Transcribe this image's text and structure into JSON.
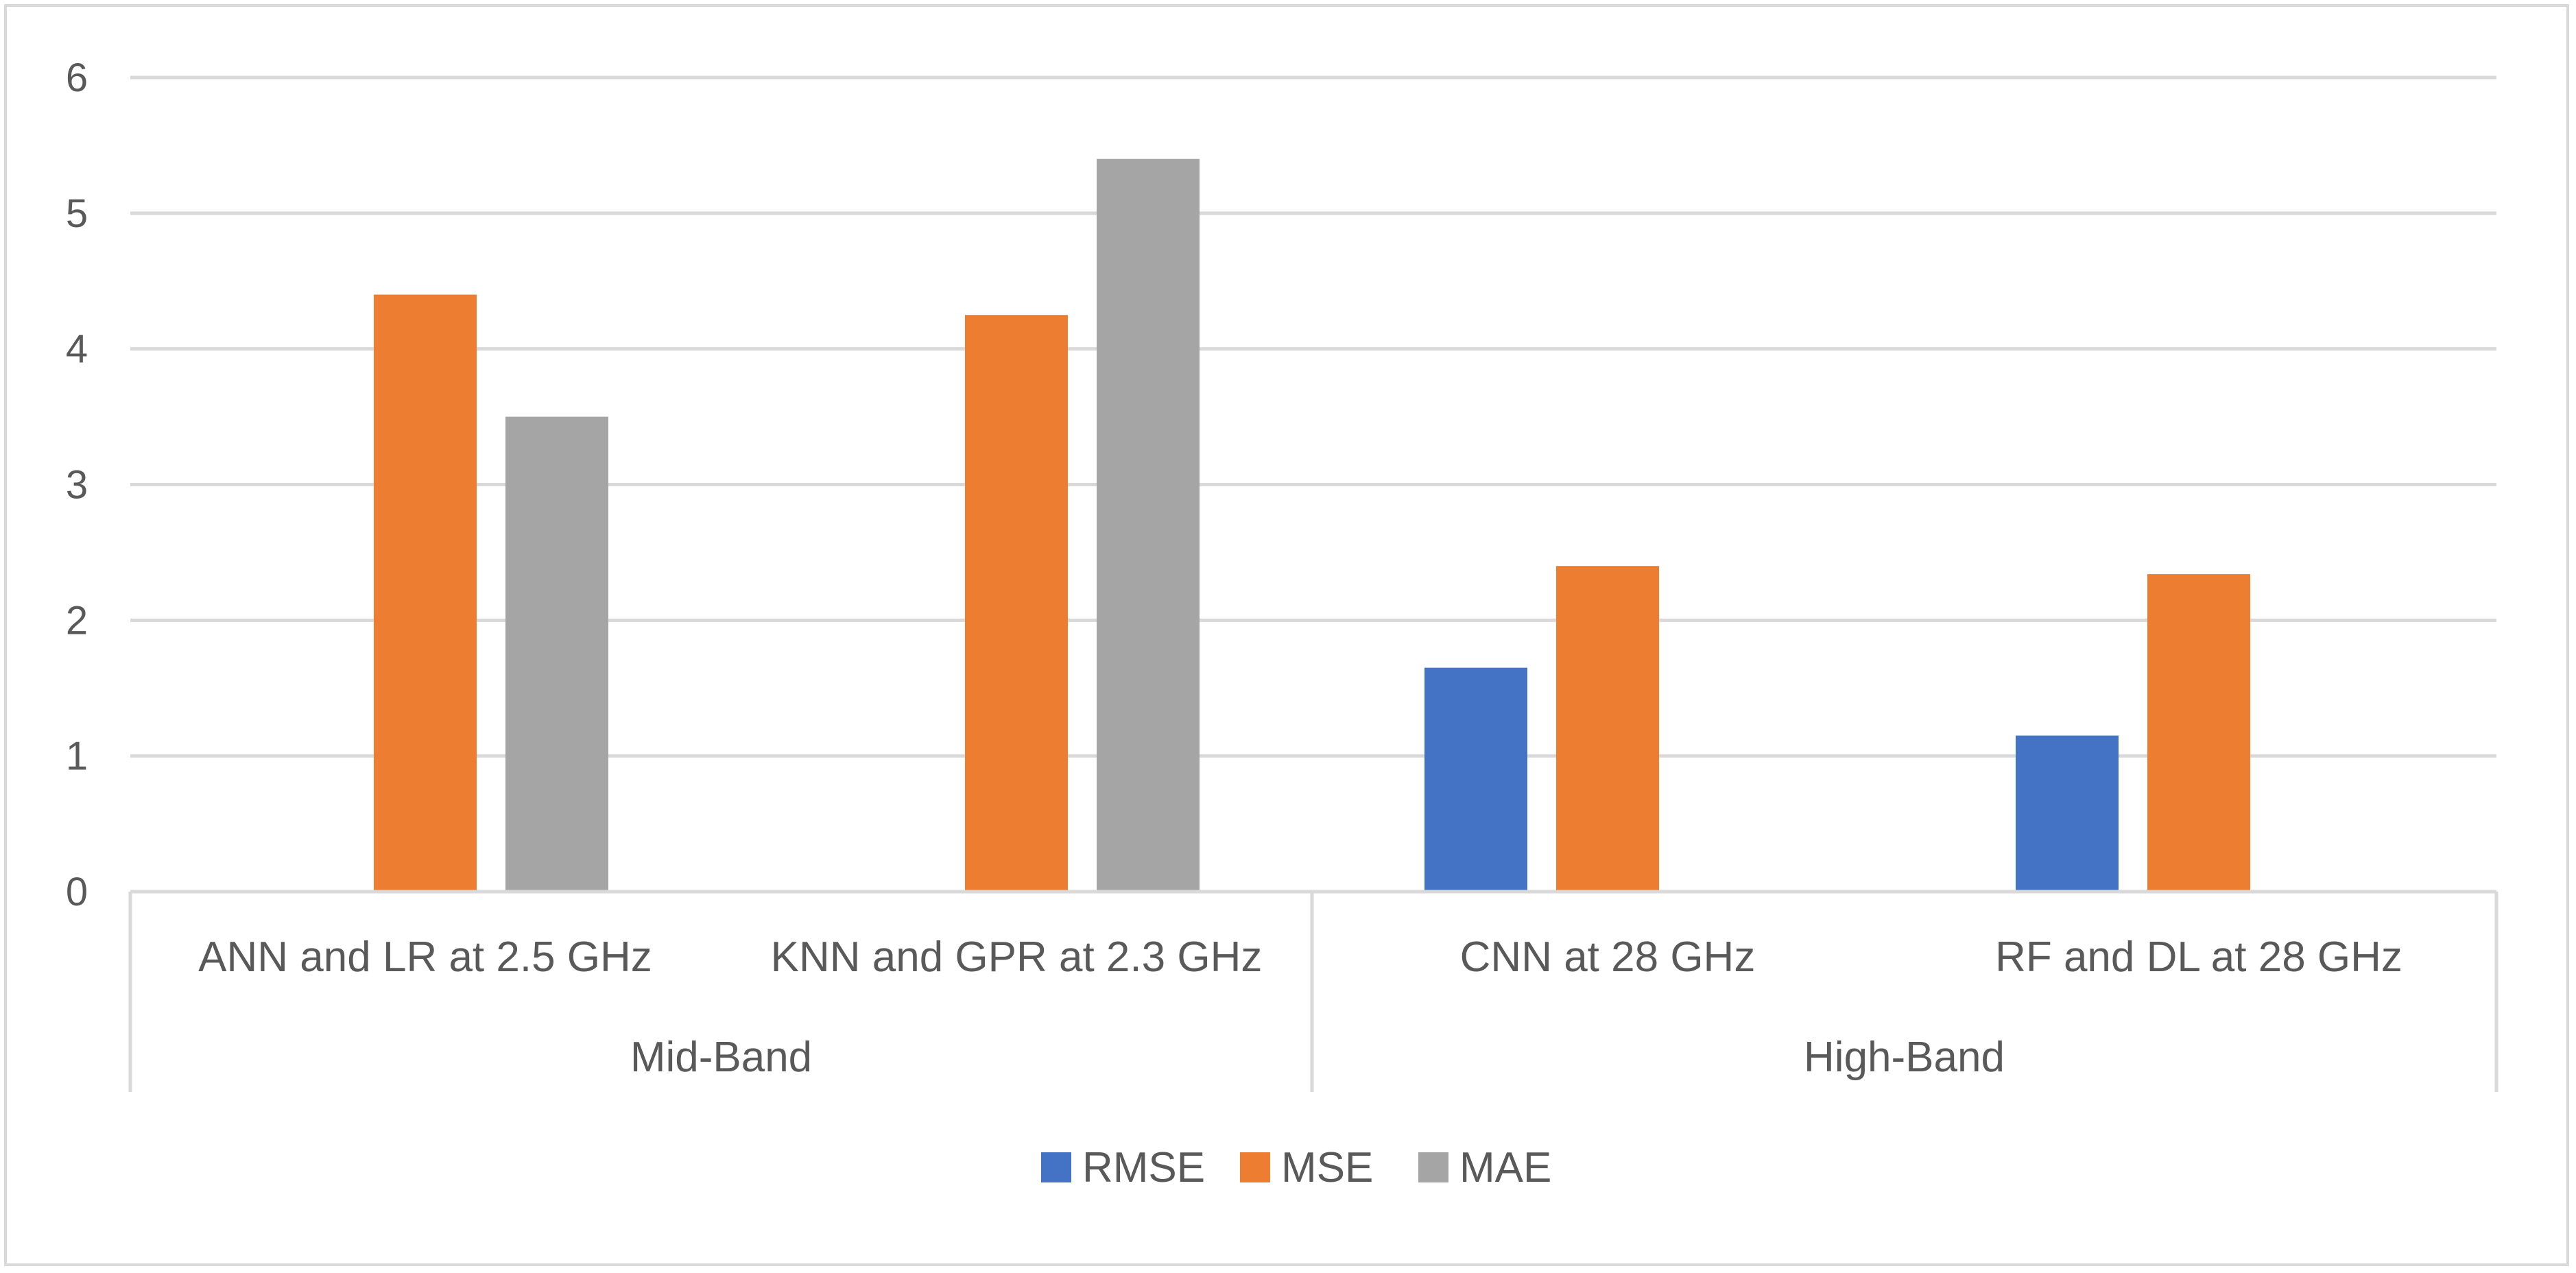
{
  "chart_data": {
    "type": "bar",
    "title": "",
    "xlabel": "",
    "ylabel": "",
    "ylim": [
      0,
      6
    ],
    "yticks": [
      0,
      1,
      2,
      3,
      4,
      5,
      6
    ],
    "ytick_labels": [
      "0",
      "1",
      "2",
      "3",
      "4",
      "5",
      "6"
    ],
    "grid": true,
    "legend_position": "bottom-center",
    "categories": [
      "ANN and LR at 2.5 GHz",
      "KNN and GPR at 2.3 GHz",
      "CNN at 28 GHz",
      "RF and DL at 28 GHz"
    ],
    "groups": [
      {
        "label": "Mid-Band",
        "categories": [
          "ANN and LR at 2.5 GHz",
          "KNN and GPR at 2.3 GHz"
        ]
      },
      {
        "label": "High-Band",
        "categories": [
          "CNN at 28 GHz",
          "RF and DL at 28 GHz"
        ]
      }
    ],
    "series": [
      {
        "name": "RMSE",
        "color": "#4472c4",
        "values": [
          null,
          null,
          1.65,
          1.15
        ]
      },
      {
        "name": "MSE",
        "color": "#ed7d31",
        "values": [
          4.4,
          4.25,
          2.4,
          2.34
        ]
      },
      {
        "name": "MAE",
        "color": "#a5a5a5",
        "values": [
          3.5,
          5.4,
          null,
          null
        ]
      }
    ]
  },
  "colors": {
    "gridline": "#d9d9d9",
    "axis": "#d9d9d9",
    "text": "#595959"
  }
}
